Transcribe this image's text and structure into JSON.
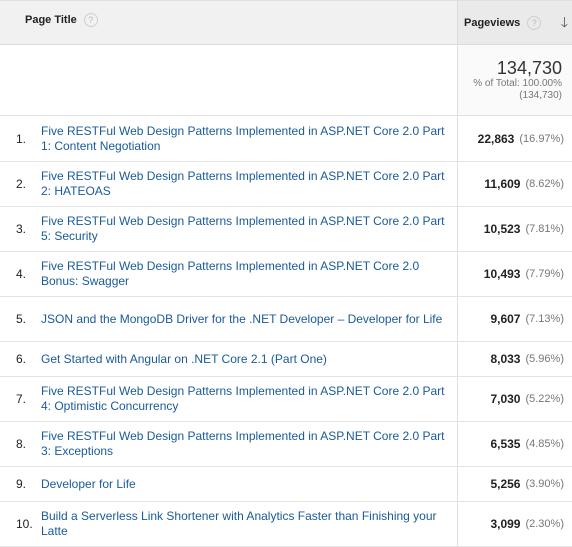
{
  "header": {
    "page_title_label": "Page Title",
    "pageviews_label": "Pageviews",
    "help_glyph": "?",
    "sort_glyph": "🡓"
  },
  "totals": {
    "value": "134,730",
    "percent_label": "% of Total: 100.00%",
    "total_paren": "(134,730)"
  },
  "rows": [
    {
      "num": "1.",
      "title": "Five RESTFul Web Design Patterns Implemented in ASP.NET Core 2.0 Part 1: Content Negotiation",
      "views": "22,863",
      "pct": "(16.97%)"
    },
    {
      "num": "2.",
      "title": "Five RESTFul Web Design Patterns Implemented in ASP.NET Core 2.0 Part 2: HATEOAS",
      "views": "11,609",
      "pct": "(8.62%)"
    },
    {
      "num": "3.",
      "title": "Five RESTFul Web Design Patterns Implemented in ASP.NET Core 2.0 Part 5: Security",
      "views": "10,523",
      "pct": "(7.81%)"
    },
    {
      "num": "4.",
      "title": "Five RESTFul Web Design Patterns Implemented in ASP.NET Core 2.0 Bonus: Swagger",
      "views": "10,493",
      "pct": "(7.79%)"
    },
    {
      "num": "5.",
      "title": "JSON and the MongoDB Driver for the .NET Developer – Developer for Life",
      "views": "9,607",
      "pct": "(7.13%)"
    },
    {
      "num": "6.",
      "title": "Get Started with Angular on .NET Core 2.1 (Part One)",
      "views": "8,033",
      "pct": "(5.96%)"
    },
    {
      "num": "7.",
      "title": "Five RESTFul Web Design Patterns Implemented in ASP.NET Core 2.0 Part 4: Optimistic Concurrency",
      "views": "7,030",
      "pct": "(5.22%)"
    },
    {
      "num": "8.",
      "title": "Five RESTFul Web Design Patterns Implemented in ASP.NET Core 2.0 Part 3: Exceptions",
      "views": "6,535",
      "pct": "(4.85%)"
    },
    {
      "num": "9.",
      "title": "Developer for Life",
      "views": "5,256",
      "pct": "(3.90%)"
    },
    {
      "num": "10.",
      "title": "Build a Serverless Link Shortener with Analytics Faster than Finishing your Latte",
      "views": "3,099",
      "pct": "(2.30%)"
    }
  ]
}
